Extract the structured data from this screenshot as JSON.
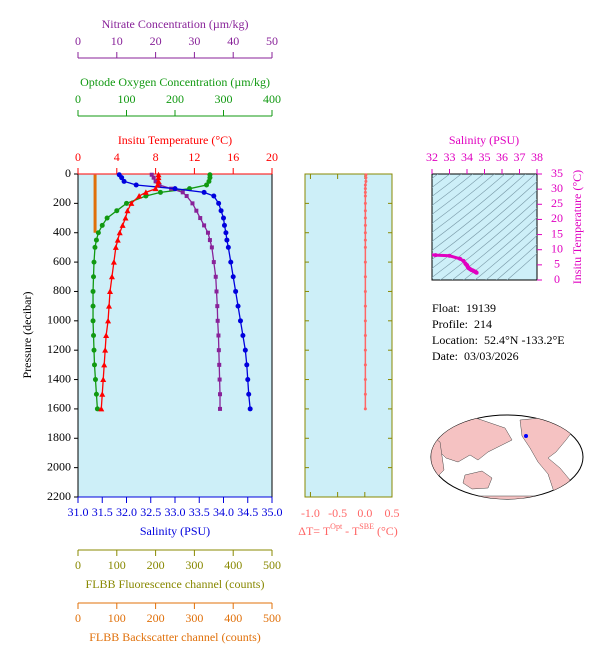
{
  "chart_data": [
    {
      "type": "profile",
      "y_label": "Pressure (decibar)",
      "ylim": [
        0,
        2200
      ],
      "yticks": [
        0,
        200,
        400,
        600,
        800,
        1000,
        1200,
        1400,
        1600,
        1800,
        2000,
        2200
      ],
      "pressure": [
        5,
        25,
        50,
        75,
        100,
        125,
        150,
        200,
        250,
        300,
        350,
        400,
        450,
        500,
        600,
        700,
        800,
        900,
        1000,
        1100,
        1200,
        1300,
        1400,
        1500,
        1600
      ],
      "axes": [
        {
          "title": "Insitu Temperature (°C)",
          "side": "top",
          "color": "#ff0000",
          "xlim": [
            0,
            20
          ],
          "xticks": [
            0,
            4,
            8,
            12,
            16,
            20
          ]
        },
        {
          "title": "Optode Oxygen Concentration (µm/kg)",
          "side": "top",
          "color": "#119911",
          "xlim": [
            0,
            400
          ],
          "xticks": [
            0,
            100,
            200,
            300,
            400
          ]
        },
        {
          "title": "Nitrate Concentration (µm/kg)",
          "side": "top",
          "color": "#882299",
          "xlim": [
            0,
            50
          ],
          "xticks": [
            0,
            10,
            20,
            30,
            40,
            50
          ]
        },
        {
          "title": "Salinity (PSU)",
          "side": "bottom",
          "color": "#0000dd",
          "xlim": [
            31,
            35
          ],
          "xticks": [
            {
              "value": 31,
              "label": "31.0"
            },
            31.5,
            {
              "value": 32,
              "label": "32.0"
            },
            32.5,
            {
              "value": 33,
              "label": "33.0"
            },
            33.5,
            {
              "value": 34,
              "label": "34.0"
            },
            34.5,
            {
              "value": 35,
              "label": "35.0"
            }
          ]
        },
        {
          "title": "FLBB Fluorescence channel (counts)",
          "side": "bottom",
          "color": "#888800",
          "xlim": [
            0,
            500
          ],
          "xticks": [
            0,
            100,
            200,
            300,
            400,
            500
          ]
        },
        {
          "title": "FLBB Backscatter channel (counts)",
          "side": "bottom",
          "color": "#e0700a",
          "xlim": [
            0,
            500
          ],
          "xticks": [
            0,
            100,
            200,
            300,
            400,
            500
          ]
        }
      ],
      "series": [
        {
          "axis": 5,
          "color": "#e0700a",
          "marker": "line",
          "values": [
            44,
            44,
            44,
            44,
            44,
            44,
            44,
            44,
            44,
            44,
            44,
            44,
            null,
            null,
            null,
            null,
            null,
            null,
            null,
            null,
            null,
            null,
            null,
            null,
            null
          ]
        },
        {
          "axis": 1,
          "color": "#119911",
          "marker": "circle",
          "values": [
            272,
            272,
            270,
            265,
            230,
            170,
            140,
            100,
            80,
            60,
            50,
            42,
            38,
            35,
            33,
            32,
            31,
            31,
            31,
            32,
            33,
            34,
            36,
            38,
            40
          ]
        },
        {
          "axis": 2,
          "color": "#882299",
          "marker": "square",
          "values": [
            19,
            19.5,
            20,
            21,
            24,
            27,
            28,
            29.5,
            30.5,
            31.5,
            32.5,
            33.5,
            34,
            34.5,
            35,
            35.5,
            35.7,
            35.9,
            36,
            36.2,
            36.3,
            36.4,
            36.5,
            36.6,
            36.6
          ]
        },
        {
          "axis": 3,
          "color": "#0000dd",
          "marker": "circle",
          "values": [
            31.85,
            31.9,
            31.95,
            32.2,
            33.0,
            33.6,
            33.8,
            33.9,
            33.95,
            34.0,
            34.02,
            34.05,
            34.07,
            34.1,
            34.15,
            34.2,
            34.25,
            34.3,
            34.35,
            34.4,
            34.45,
            34.48,
            34.5,
            34.52,
            34.55
          ]
        },
        {
          "axis": 0,
          "color": "#ff0000",
          "marker": "triangle",
          "values": [
            8.3,
            8.3,
            8.3,
            8.2,
            8.0,
            7.0,
            6.3,
            5.5,
            5.1,
            4.9,
            4.6,
            4.3,
            4.1,
            3.9,
            3.7,
            3.5,
            3.3,
            3.2,
            3.1,
            2.9,
            2.8,
            2.7,
            2.6,
            2.5,
            2.4
          ]
        }
      ]
    },
    {
      "type": "delta",
      "x_label": [
        "ΔT= T",
        "Opt",
        " - T",
        "SBE",
        " (°C)"
      ],
      "color": "#ff6666",
      "xlim": [
        -1.1,
        0.5
      ],
      "xticks": [
        {
          "value": -1,
          "label": "-1.0"
        },
        -0.5,
        {
          "value": 0,
          "label": "0.0"
        },
        0.5
      ],
      "values": [
        0.02,
        0.02,
        0.02,
        0.01,
        0.01,
        0.01,
        0.01,
        0.01,
        0.01,
        0.01,
        0.01,
        0.01,
        0.01,
        0.01,
        0.01,
        0.01,
        0.01,
        0.01,
        0.01,
        0.01,
        0.01,
        0.01,
        0.01,
        0.01,
        0.01
      ]
    },
    {
      "type": "ts",
      "title": "Salinity (PSU)",
      "y_label": "Insitu Temperature (°C)",
      "color": "#e000c0",
      "xlim": [
        32,
        38
      ],
      "xticks": [
        32,
        33,
        34,
        35,
        36,
        37,
        38
      ],
      "ylim": [
        0,
        35
      ],
      "yticks": [
        0,
        5,
        10,
        15,
        20,
        25,
        30,
        35
      ]
    }
  ],
  "info": [
    {
      "label": "Float:",
      "value": "19139"
    },
    {
      "label": "Profile:",
      "value": "214"
    },
    {
      "label": "Location:",
      "value": "52.4°N -133.2°E"
    },
    {
      "label": "Date:",
      "value": "03/03/2026"
    }
  ]
}
